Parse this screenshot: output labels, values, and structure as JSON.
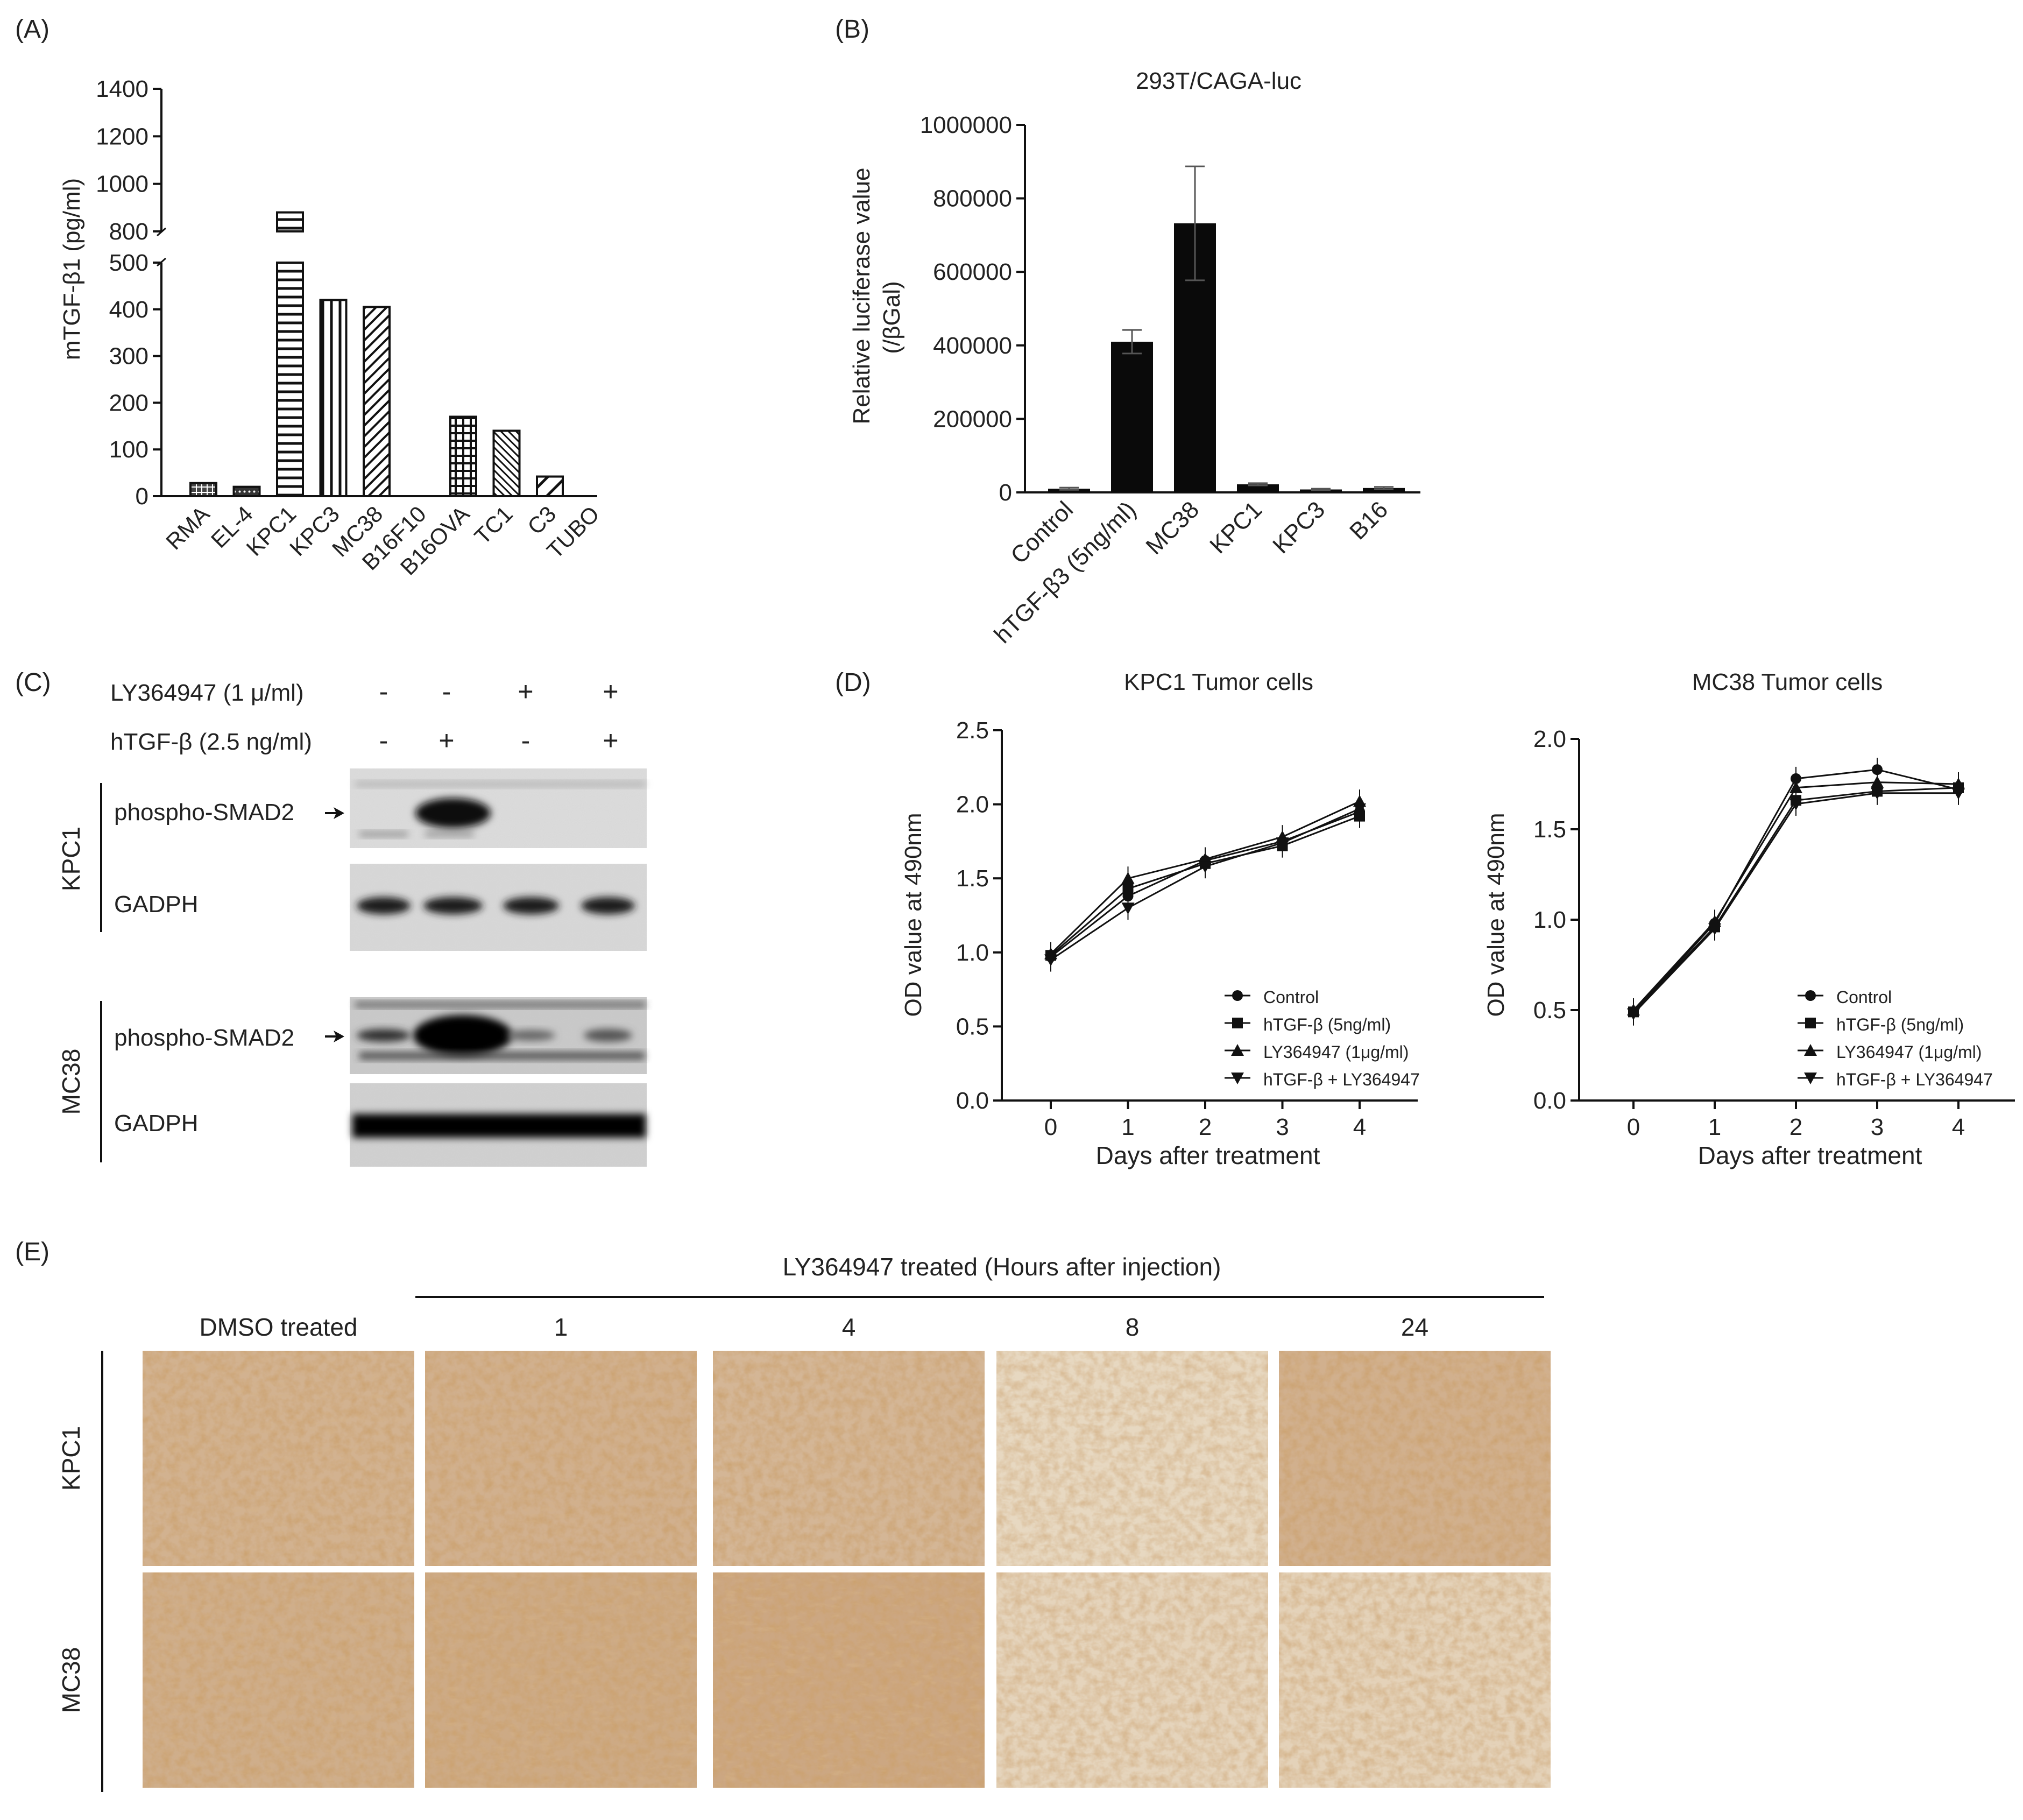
{
  "panel_labels": [
    "(A)",
    "(B)",
    "(C)",
    "(D)",
    "(E)"
  ],
  "chart_data": [
    {
      "panel": "(A)",
      "type": "bar",
      "title": "",
      "ylabel": "mTGF-β1 (pg/ml)",
      "categories": [
        "RMA",
        "EL-4",
        "KPC1",
        "KPC3",
        "MC38",
        "B16F10",
        "B16OVA",
        "TC1",
        "C3",
        "TUBO"
      ],
      "values": [
        28,
        20,
        880,
        420,
        405,
        0,
        170,
        140,
        42,
        0
      ],
      "broken_axis": true,
      "ylim_lower": [
        0,
        500
      ],
      "ylim_upper": [
        800,
        1400
      ],
      "yticks_lower": [
        "0",
        "100",
        "200",
        "300",
        "400",
        "500"
      ],
      "yticks_upper": [
        "800",
        "1000",
        "1200",
        "1400"
      ],
      "patterns": [
        "crosshatch-dense",
        "dots",
        "horizontal",
        "vertical",
        "diagonal",
        "none",
        "grid",
        "diagonal-dense",
        "diagonal-wide",
        "none"
      ]
    },
    {
      "panel": "(B)",
      "type": "bar",
      "title": "293T/CAGA-luc",
      "ylabel": "Relative luciferase value",
      "ylabel2": "(/βGal)",
      "categories": [
        "Control",
        "hTGF-β3 (5ng/ml)",
        "MC38",
        "KPC1",
        "KPC3",
        "B16"
      ],
      "values": [
        10000,
        410000,
        732000,
        22000,
        8000,
        12000
      ],
      "errors": [
        3000,
        32000,
        155000,
        3000,
        2000,
        3000
      ],
      "ylim": [
        0,
        1000000
      ],
      "yticks": [
        "0",
        "200000",
        "400000",
        "600000",
        "800000",
        "1000000"
      ]
    },
    {
      "panel": "(D)",
      "type": "line",
      "title": "KPC1 Tumor cells",
      "xlabel": "Days after treatment",
      "ylabel": "OD value at 490nm",
      "x": [
        0,
        1,
        2,
        3,
        4
      ],
      "xticks": [
        "0",
        "1",
        "2",
        "3",
        "4"
      ],
      "ylim": [
        0,
        2.5
      ],
      "yticks": [
        "0.0",
        "0.5",
        "1.0",
        "1.5",
        "2.0",
        "2.5"
      ],
      "series": [
        {
          "name": "Control",
          "marker": "circle",
          "values": [
            0.97,
            1.38,
            1.62,
            1.75,
            1.95
          ]
        },
        {
          "name": "hTGF-β   (5ng/ml)",
          "marker": "square",
          "values": [
            0.98,
            1.43,
            1.6,
            1.72,
            1.92
          ]
        },
        {
          "name": "LY364947 (1μg/ml)",
          "marker": "triangle-up",
          "values": [
            0.99,
            1.5,
            1.63,
            1.78,
            2.02
          ]
        },
        {
          "name": "hTGF-β   + LY364947",
          "marker": "triangle-down",
          "values": [
            0.95,
            1.3,
            1.58,
            1.74,
            1.97
          ]
        }
      ]
    },
    {
      "panel": "(D)",
      "type": "line",
      "title": "MC38 Tumor cells",
      "xlabel": "Days after treatment",
      "ylabel": "OD value at 490nm",
      "x": [
        0,
        1,
        2,
        3,
        4
      ],
      "xticks": [
        "0",
        "1",
        "2",
        "3",
        "4"
      ],
      "ylim": [
        0,
        2.0
      ],
      "yticks": [
        "0.0",
        "0.5",
        "1.0",
        "1.5",
        "2.0"
      ],
      "series": [
        {
          "name": "Control",
          "marker": "circle",
          "values": [
            0.49,
            0.98,
            1.78,
            1.83,
            1.72
          ]
        },
        {
          "name": "hTGF-β   (5ng/ml)",
          "marker": "square",
          "values": [
            0.49,
            0.96,
            1.66,
            1.71,
            1.73
          ]
        },
        {
          "name": "LY364947 (1μg/ml)",
          "marker": "triangle-up",
          "values": [
            0.5,
            0.99,
            1.73,
            1.76,
            1.75
          ]
        },
        {
          "name": "hTGF-β   + LY364947",
          "marker": "triangle-down",
          "values": [
            0.48,
            0.95,
            1.64,
            1.7,
            1.7
          ]
        }
      ]
    }
  ],
  "blot": {
    "conditions": [
      {
        "label": "LY364947 (1 μ/ml)",
        "signs": [
          "-",
          "-",
          "+",
          "+"
        ]
      },
      {
        "label": "hTGF-β (2.5 ng/ml)",
        "signs": [
          "-",
          "+",
          "-",
          "+"
        ]
      }
    ],
    "groups": [
      {
        "name": "KPC1",
        "rows": [
          "phospho-SMAD2",
          "GADPH"
        ]
      },
      {
        "name": "MC38",
        "rows": [
          "phospho-SMAD2",
          "GADPH"
        ]
      }
    ]
  },
  "ihc": {
    "header": "LY364947 treated (Hours after injection)",
    "columns": [
      "DMSO treated",
      "1",
      "4",
      "8",
      "24"
    ],
    "rows": [
      "KPC1",
      "MC38"
    ],
    "stain_intensity": [
      [
        0.8,
        0.82,
        0.72,
        0.25,
        0.82
      ],
      [
        0.85,
        0.9,
        0.95,
        0.3,
        0.35
      ]
    ],
    "stain_color": "#a86a32",
    "background_color": "#f2ead9"
  }
}
